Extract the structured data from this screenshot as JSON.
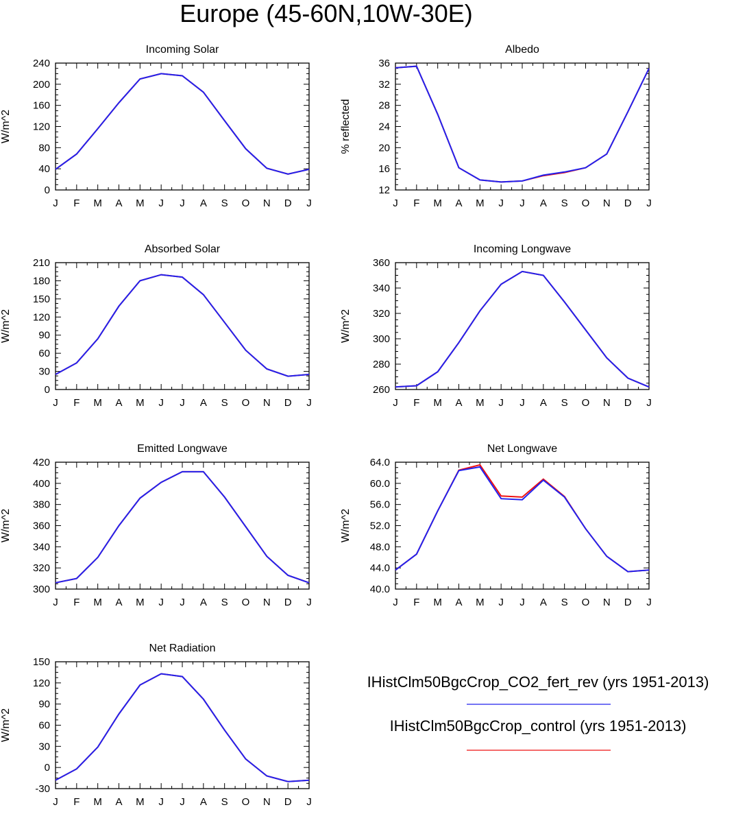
{
  "title": "Europe (45-60N,10W-30E)",
  "months": [
    "J",
    "F",
    "M",
    "A",
    "M",
    "J",
    "J",
    "A",
    "S",
    "O",
    "N",
    "D",
    "J"
  ],
  "colors": {
    "series_a": "#2222ee",
    "series_b": "#ee1111"
  },
  "legend": [
    {
      "label": "IHistClm50BgcCrop_CO2_fert_rev (yrs 1951-2013)",
      "color": "#2222ee"
    },
    {
      "label": "IHistClm50BgcCrop_control (yrs 1951-2013)",
      "color": "#ee1111"
    }
  ],
  "chart_data": [
    {
      "type": "line",
      "title": "Incoming Solar",
      "ylabel": "W/m^2",
      "ylim": [
        0,
        240
      ],
      "yticks": [
        "0",
        "40",
        "80",
        "120",
        "160",
        "200",
        "240"
      ],
      "series": [
        {
          "values": [
            39,
            68,
            116,
            165,
            210,
            220,
            216,
            185,
            131,
            78,
            41,
            30,
            39
          ]
        },
        {
          "values": [
            39,
            68,
            116,
            165,
            210,
            220,
            216,
            185,
            131,
            78,
            41,
            30,
            39
          ]
        }
      ]
    },
    {
      "type": "line",
      "title": "Albedo",
      "ylabel": "% reflected",
      "ylim": [
        12,
        36
      ],
      "yticks": [
        "12",
        "16",
        "20",
        "24",
        "28",
        "32",
        "36"
      ],
      "series": [
        {
          "values": [
            35.1,
            35.4,
            26.3,
            16.2,
            13.9,
            13.5,
            13.7,
            14.8,
            15.4,
            16.2,
            18.8,
            26.8,
            35.0
          ]
        },
        {
          "values": [
            35.1,
            35.4,
            26.3,
            16.2,
            13.9,
            13.5,
            13.7,
            14.7,
            15.3,
            16.2,
            18.8,
            26.8,
            35.0
          ]
        }
      ]
    },
    {
      "type": "line",
      "title": "Absorbed Solar",
      "ylabel": "W/m^2",
      "ylim": [
        0,
        210
      ],
      "yticks": [
        "0",
        "30",
        "60",
        "90",
        "120",
        "150",
        "180",
        "210"
      ],
      "series": [
        {
          "values": [
            25,
            44,
            84,
            138,
            180,
            190,
            186,
            157,
            111,
            65,
            34,
            22,
            25
          ]
        },
        {
          "values": [
            25,
            44,
            84,
            138,
            180,
            190,
            186,
            157,
            111,
            65,
            34,
            22,
            25
          ]
        }
      ]
    },
    {
      "type": "line",
      "title": "Incoming Longwave",
      "ylabel": "W/m^2",
      "ylim": [
        260,
        360
      ],
      "yticks": [
        "260",
        "280",
        "300",
        "320",
        "340",
        "360"
      ],
      "series": [
        {
          "values": [
            262,
            263,
            274,
            297,
            322,
            343,
            353,
            350,
            329,
            307,
            285,
            269,
            262
          ]
        },
        {
          "values": [
            262,
            263,
            274,
            297,
            322,
            343,
            353,
            350,
            329,
            307,
            285,
            269,
            262
          ]
        }
      ]
    },
    {
      "type": "line",
      "title": "Emitted Longwave",
      "ylabel": "W/m^2",
      "ylim": [
        300,
        420
      ],
      "yticks": [
        "300",
        "320",
        "340",
        "360",
        "380",
        "400",
        "420"
      ],
      "series": [
        {
          "values": [
            306,
            310,
            330,
            360,
            386,
            401,
            411,
            411,
            387,
            359,
            331,
            313,
            306
          ]
        },
        {
          "values": [
            306,
            310,
            330,
            360,
            386,
            401,
            411,
            411,
            387,
            359,
            331,
            313,
            306
          ]
        }
      ]
    },
    {
      "type": "line",
      "title": "Net Longwave",
      "ylabel": "W/m^2",
      "ylim": [
        40,
        64
      ],
      "yticks": [
        "40.0",
        "44.0",
        "48.0",
        "52.0",
        "56.0",
        "60.0",
        "64.0"
      ],
      "series": [
        {
          "values": [
            43.6,
            46.6,
            54.8,
            62.4,
            63.1,
            57.1,
            56.9,
            60.6,
            57.4,
            51.4,
            46.2,
            43.3,
            43.6
          ]
        },
        {
          "values": [
            43.6,
            46.6,
            54.8,
            62.5,
            63.5,
            57.6,
            57.4,
            60.8,
            57.5,
            51.4,
            46.2,
            43.3,
            43.6
          ]
        }
      ]
    },
    {
      "type": "line",
      "title": "Net Radiation",
      "ylabel": "W/m^2",
      "ylim": [
        -30,
        150
      ],
      "yticks": [
        "-30",
        "0",
        "30",
        "60",
        "90",
        "120",
        "150"
      ],
      "series": [
        {
          "values": [
            -18,
            -2,
            29,
            76,
            117,
            133,
            129,
            97,
            53,
            12,
            -12,
            -20,
            -18
          ]
        },
        {
          "values": [
            -18,
            -2,
            29,
            76,
            117,
            133,
            129,
            97,
            53,
            12,
            -12,
            -20,
            -18
          ]
        }
      ]
    }
  ]
}
